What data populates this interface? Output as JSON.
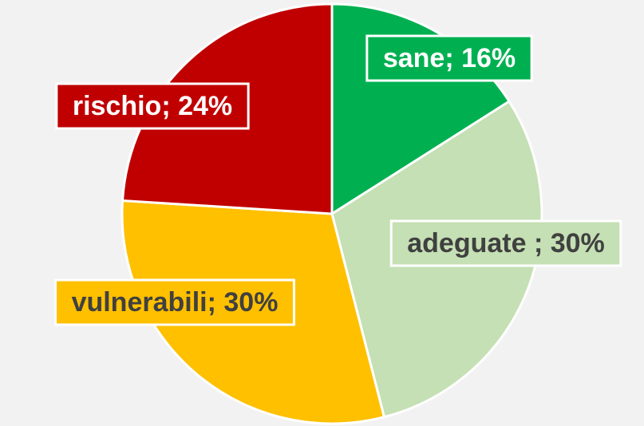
{
  "chart_data": {
    "type": "pie",
    "values": [
      16,
      30,
      30,
      24
    ],
    "value_labels": [
      "sane; 16%",
      "adeguate ; 30%",
      "vulnerabili; 30%",
      "rischio; 24%"
    ],
    "colors": [
      "#00b050",
      "#c5e0b4",
      "#ffc000",
      "#c00000"
    ],
    "label_colors": [
      "#ffffff",
      "#404040",
      "#404040",
      "#ffffff"
    ]
  }
}
